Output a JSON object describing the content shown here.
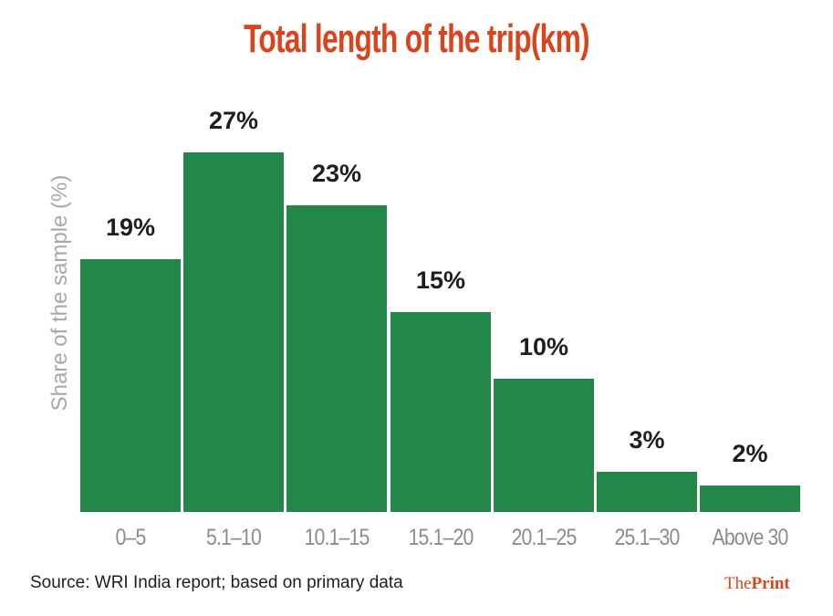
{
  "title": "Total length of the trip(km)",
  "ylabel": "Share of the sample (%)",
  "source": "Source: WRI India report; based on primary data",
  "brand": {
    "part1": "The",
    "part2": "Print"
  },
  "colors": {
    "bar": "#24874a",
    "title": "#d9441c",
    "brand": "#d9441c",
    "axis_text": "#8c8c8c",
    "value_text": "#1e1e1e"
  },
  "chart_data": {
    "type": "bar",
    "title": "Total length of the trip(km)",
    "xlabel": "",
    "ylabel": "Share of the sample (%)",
    "categories": [
      "0–5",
      "5.1–10",
      "10.1–15",
      "15.1–20",
      "20.1–25",
      "25.1–30",
      "Above 30"
    ],
    "values": [
      19,
      27,
      23,
      15,
      10,
      3,
      2
    ],
    "value_labels": [
      "19%",
      "27%",
      "23%",
      "15%",
      "10%",
      "3%",
      "2%"
    ],
    "ylim": [
      0,
      30
    ],
    "grid": false,
    "legend": null
  }
}
